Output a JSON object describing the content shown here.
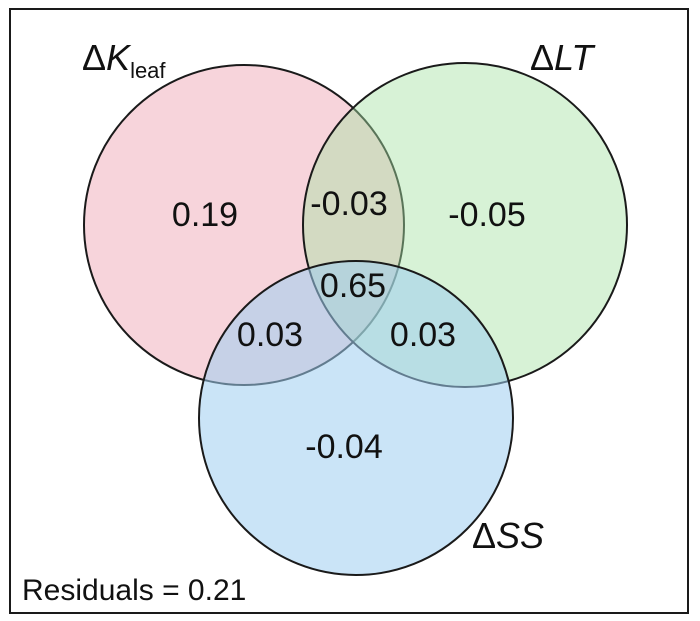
{
  "sets": [
    {
      "id": "kleaf",
      "delta": "Δ",
      "name": "K",
      "subscript": "leaf",
      "color": "#ee9fb0"
    },
    {
      "id": "lt",
      "delta": "Δ",
      "name": "LT",
      "subscript": "",
      "color": "#a6e3a4"
    },
    {
      "id": "ss",
      "delta": "Δ",
      "name": "SS",
      "subscript": "",
      "color": "#9fcdf1"
    }
  ],
  "regions": {
    "kleaf_only": "0.19",
    "lt_only": "-0.05",
    "ss_only": "-0.04",
    "kleaf_lt": "-0.03",
    "kleaf_ss": "0.03",
    "lt_ss": "0.03",
    "all_three": "0.65"
  },
  "residuals": {
    "label": "Residuals = 0.21"
  },
  "colors": {
    "outline": "#1a1a1a",
    "frame": "#1a1a1a"
  }
}
